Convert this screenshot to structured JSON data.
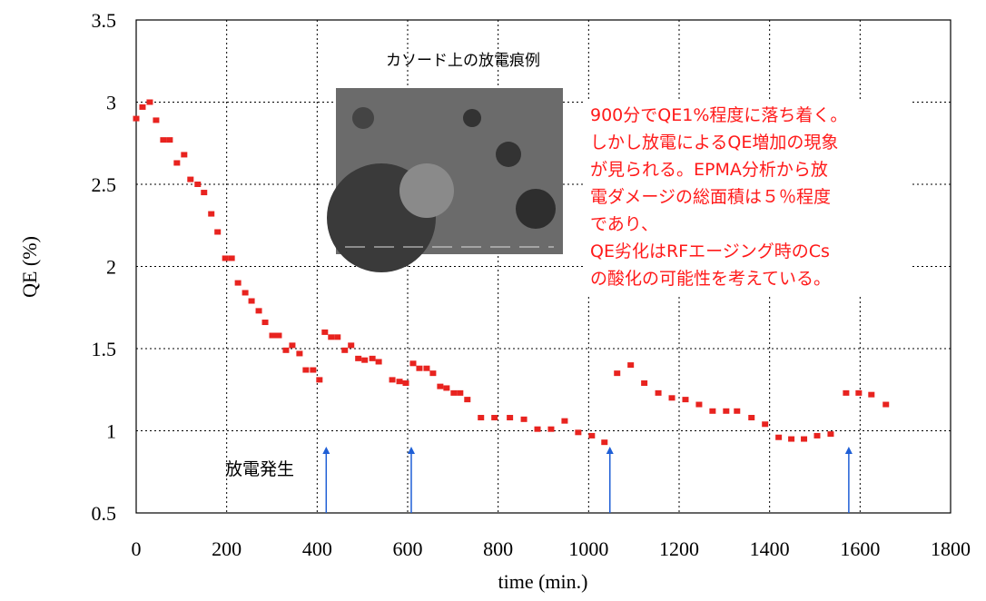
{
  "chart_data": {
    "type": "scatter",
    "xlabel": "time (min.)",
    "ylabel": "QE (%)",
    "xlim": [
      0,
      1800
    ],
    "ylim": [
      0.5,
      3.5
    ],
    "xticks": [
      0,
      200,
      400,
      600,
      800,
      1000,
      1200,
      1400,
      1600,
      1800
    ],
    "yticks": [
      0.5,
      1,
      1.5,
      2,
      2.5,
      3,
      3.5
    ],
    "grid": true,
    "color": "#e8231f",
    "x": [
      0,
      14,
      30,
      44,
      60,
      74,
      90,
      106,
      120,
      136,
      150,
      166,
      180,
      197,
      211,
      225,
      241,
      255,
      271,
      285,
      301,
      315,
      331,
      345,
      361,
      375,
      391,
      405,
      417,
      431,
      445,
      461,
      475,
      491,
      505,
      522,
      536,
      566,
      582,
      596,
      612,
      626,
      642,
      656,
      672,
      686,
      702,
      716,
      732,
      762,
      792,
      826,
      857,
      887,
      917,
      947,
      977,
      1007,
      1035,
      1063,
      1093,
      1123,
      1154,
      1184,
      1214,
      1244,
      1274,
      1304,
      1328,
      1360,
      1390,
      1420,
      1448,
      1476,
      1505,
      1535,
      1569,
      1597,
      1625,
      1657
    ],
    "values": [
      2.9,
      2.97,
      3.0,
      2.89,
      2.77,
      2.77,
      2.63,
      2.68,
      2.53,
      2.5,
      2.45,
      2.32,
      2.21,
      2.05,
      2.05,
      1.9,
      1.84,
      1.79,
      1.73,
      1.66,
      1.58,
      1.58,
      1.49,
      1.52,
      1.47,
      1.37,
      1.37,
      1.31,
      1.6,
      1.57,
      1.57,
      1.49,
      1.52,
      1.44,
      1.43,
      1.44,
      1.42,
      1.31,
      1.3,
      1.29,
      1.41,
      1.38,
      1.38,
      1.35,
      1.27,
      1.26,
      1.23,
      1.23,
      1.19,
      1.08,
      1.08,
      1.08,
      1.07,
      1.01,
      1.01,
      1.06,
      0.99,
      0.97,
      0.93,
      1.35,
      1.4,
      1.29,
      1.23,
      1.2,
      1.19,
      1.16,
      1.12,
      1.12,
      1.12,
      1.08,
      1.04,
      0.96,
      0.95,
      0.95,
      0.97,
      0.98,
      1.23,
      1.23,
      1.22,
      1.16
    ],
    "discharge_events_x": [
      420,
      608,
      1047,
      1575
    ],
    "discharge_label": "放電発生",
    "photo_caption": "カソード上の放電痕例",
    "note_lines": [
      "900分でQE1%程度に落ち着く。",
      "しかし放電によるQE増加の現象",
      "が見られる。EPMA分析から放",
      "電ダメージの総面積は５％程度",
      "であり、",
      "QE劣化はRFエージング時のCs",
      "の酸化の可能性を考えている。"
    ]
  }
}
